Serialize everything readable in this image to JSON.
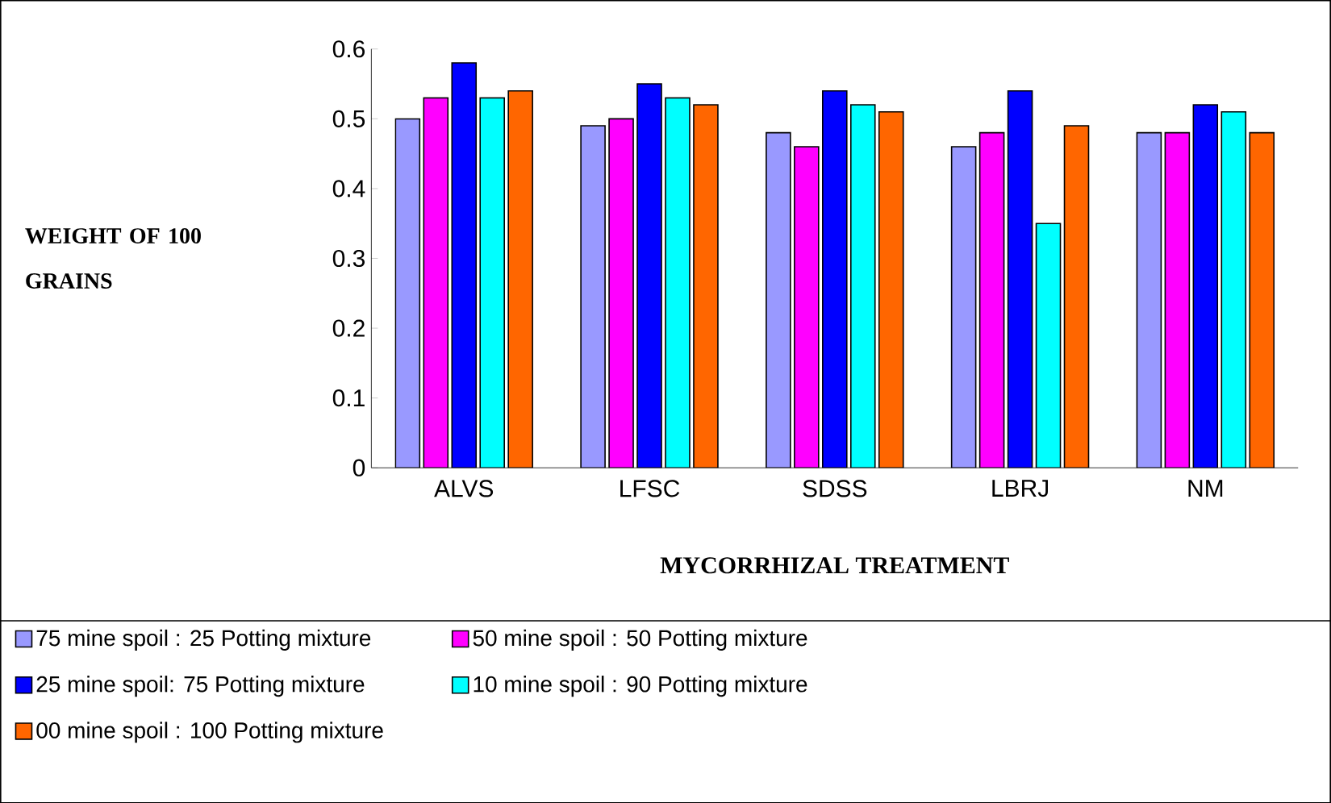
{
  "chart_data": {
    "type": "bar",
    "xlabel": "MYCORRHIZAL TREATMENT",
    "ylabel": "WEIGHT OF 100 GRAINS",
    "categories": [
      "ALVS",
      "LFSC",
      "SDSS",
      "LBRJ",
      "NM"
    ],
    "ylim": [
      0,
      0.6
    ],
    "yticks": [
      0,
      0.1,
      0.2,
      0.3,
      0.4,
      0.5,
      0.6
    ],
    "legend": "bottom",
    "series": [
      {
        "name": "75 mine spoil : 25 Potting mixture",
        "color": "#9999ff",
        "values": [
          0.5,
          0.49,
          0.48,
          0.46,
          0.48
        ]
      },
      {
        "name": "50 mine spoil : 50 Potting mixture",
        "color": "#ff00ff",
        "values": [
          0.53,
          0.5,
          0.46,
          0.48,
          0.48
        ]
      },
      {
        "name": "25 mine spoil: 75 Potting mixture",
        "color": "#0000ff",
        "values": [
          0.58,
          0.55,
          0.54,
          0.54,
          0.52
        ]
      },
      {
        "name": "10 mine spoil : 90 Potting mixture",
        "color": "#00ffff",
        "values": [
          0.53,
          0.53,
          0.52,
          0.35,
          0.51
        ]
      },
      {
        "name": "00 mine spoil : 100 Potting mixture",
        "color": "#ff6600",
        "values": [
          0.54,
          0.52,
          0.51,
          0.49,
          0.48
        ]
      }
    ]
  }
}
